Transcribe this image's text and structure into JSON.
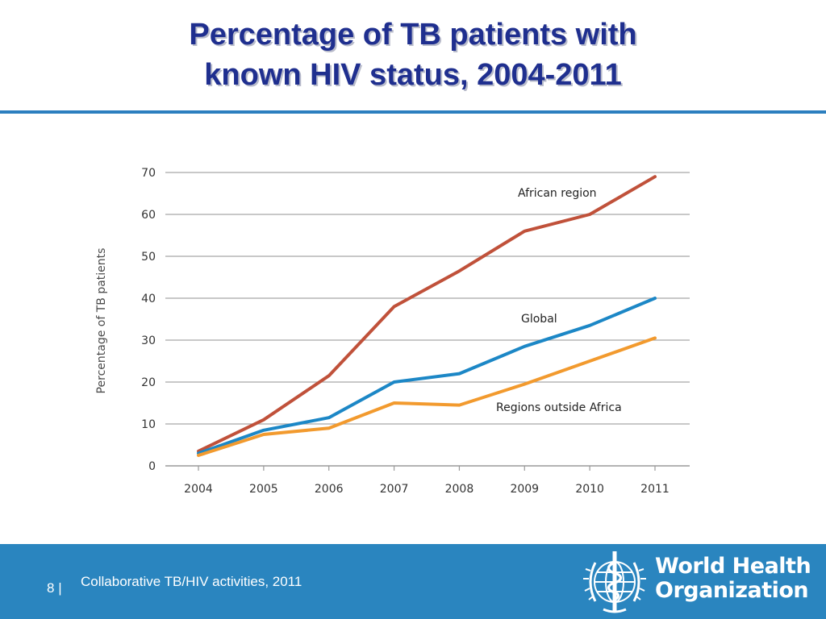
{
  "slide": {
    "title_line1": "Percentage of TB patients with",
    "title_line2": "known HIV status, 2004-2011",
    "page_number": "8",
    "page_separator": "|",
    "footer_text": "Collaborative TB/HIV activities, 2011",
    "org_name_line1": "World Health",
    "org_name_line2": "Organization"
  },
  "colors": {
    "title": "#1f2f8f",
    "rule": "#2c7fbf",
    "footer": "#2a85bf",
    "african": "#c0513a",
    "global": "#1c87c6",
    "outside": "#f29a2e"
  },
  "chart_data": {
    "type": "line",
    "title": "",
    "xlabel": "",
    "ylabel": "Percentage of TB patients",
    "categories": [
      "2004",
      "2005",
      "2006",
      "2007",
      "2008",
      "2009",
      "2010",
      "2011"
    ],
    "ylim": [
      0,
      70
    ],
    "yticks": [
      0,
      10,
      20,
      30,
      40,
      50,
      60,
      70
    ],
    "grid": true,
    "series": [
      {
        "name": "African region",
        "color": "#c0513a",
        "values": [
          3.5,
          11,
          21.5,
          38,
          46.5,
          56,
          60,
          69
        ]
      },
      {
        "name": "Global",
        "color": "#1c87c6",
        "values": [
          3,
          8.5,
          11.5,
          20,
          22,
          28.5,
          33.5,
          40
        ]
      },
      {
        "name": "Regions outside Africa",
        "color": "#f29a2e",
        "values": [
          2.5,
          7.5,
          9,
          15,
          14.5,
          19.5,
          25,
          30.5
        ]
      }
    ]
  }
}
